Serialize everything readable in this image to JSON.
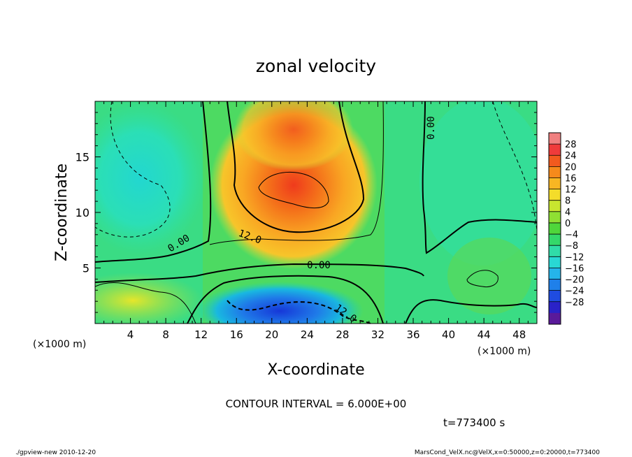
{
  "chart_data": {
    "type": "heatmap",
    "title": "zonal velocity",
    "xlabel": "X-coordinate",
    "ylabel": "Z-coordinate",
    "x_unit_left": "(×1000 m)",
    "x_unit_right": "(×1000 m)",
    "xlim": [
      0,
      50
    ],
    "ylim": [
      0,
      20
    ],
    "x_ticks": [
      "4",
      "8",
      "12",
      "16",
      "20",
      "24",
      "28",
      "32",
      "36",
      "40",
      "44",
      "48"
    ],
    "y_ticks": [
      "5",
      "10",
      "15"
    ],
    "colorbar_ticks": [
      "28",
      "24",
      "20",
      "16",
      "12",
      "8",
      "4",
      "0",
      "−4",
      "−8",
      "−12",
      "−16",
      "−20",
      "−24",
      "−28"
    ],
    "contour_labels": [
      "0.00",
      "12.0",
      "0.00",
      "0.00",
      "12.0"
    ],
    "contour_interval_text": "CONTOUR INTERVAL = 6.000E+00",
    "time_text": "t=773400 s",
    "value_range": [
      -28,
      28
    ],
    "features": [
      {
        "kind": "max",
        "x": 22,
        "z": 12,
        "value": 22
      },
      {
        "kind": "min",
        "x": 21,
        "z": 1.5,
        "value": -18
      },
      {
        "kind": "min",
        "x": 5,
        "z": 13,
        "value": -10
      }
    ]
  },
  "footer": {
    "left": "./gpview-new   2010-12-20",
    "right": "MarsCond_VelX.nc@VelX,x=0:50000,z=0:20000,t=773400"
  }
}
